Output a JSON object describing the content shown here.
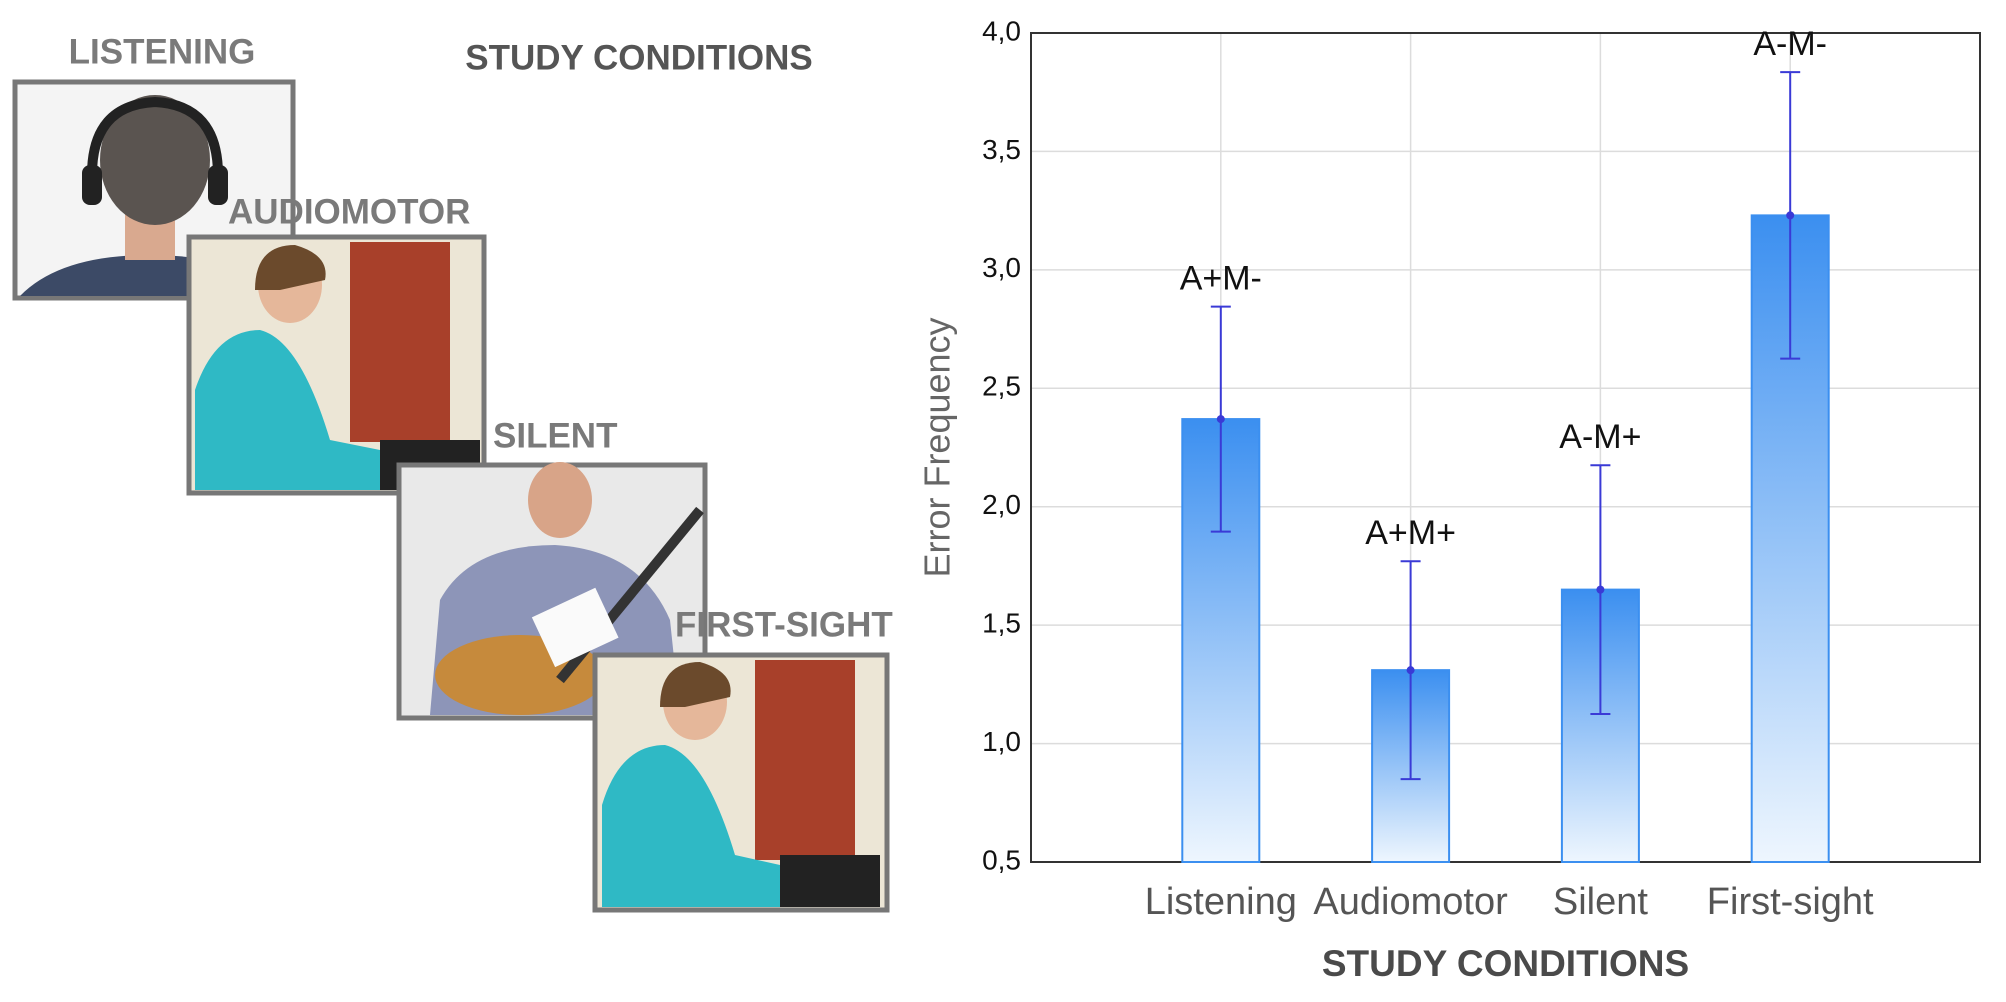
{
  "figure_panel": {
    "title": "STUDY CONDITIONS",
    "labels": [
      "LISTENING",
      "AUDIOMOTOR",
      "SILENT",
      "FIRST-SIGHT"
    ]
  },
  "chart_data": {
    "type": "bar",
    "categories": [
      "Listening",
      "Audiomotor",
      "Silent",
      "First-sight"
    ],
    "values": [
      2.37,
      1.31,
      1.65,
      3.23
    ],
    "errors": [
      0.475,
      0.46,
      0.525,
      0.605
    ],
    "bar_labels": [
      "A+M-",
      "A+M+",
      "A-M+",
      "A-M-"
    ],
    "color": "#3b8ff0",
    "error_color": "#3a3ad6",
    "x_label": "STUDY CONDITIONS",
    "y_label": "Error Frequency",
    "ylim": [
      0.5,
      4.0
    ],
    "yticks": [
      {
        "value": 0.5,
        "label": "0,5"
      },
      {
        "value": 1.0,
        "label": "1,0"
      },
      {
        "value": 1.5,
        "label": "1,5"
      },
      {
        "value": 2.0,
        "label": "2,0"
      },
      {
        "value": 2.5,
        "label": "2,5"
      },
      {
        "value": 3.0,
        "label": "3,0"
      },
      {
        "value": 3.5,
        "label": "3,5"
      },
      {
        "value": 4.0,
        "label": "4,0"
      }
    ],
    "grid": true
  }
}
